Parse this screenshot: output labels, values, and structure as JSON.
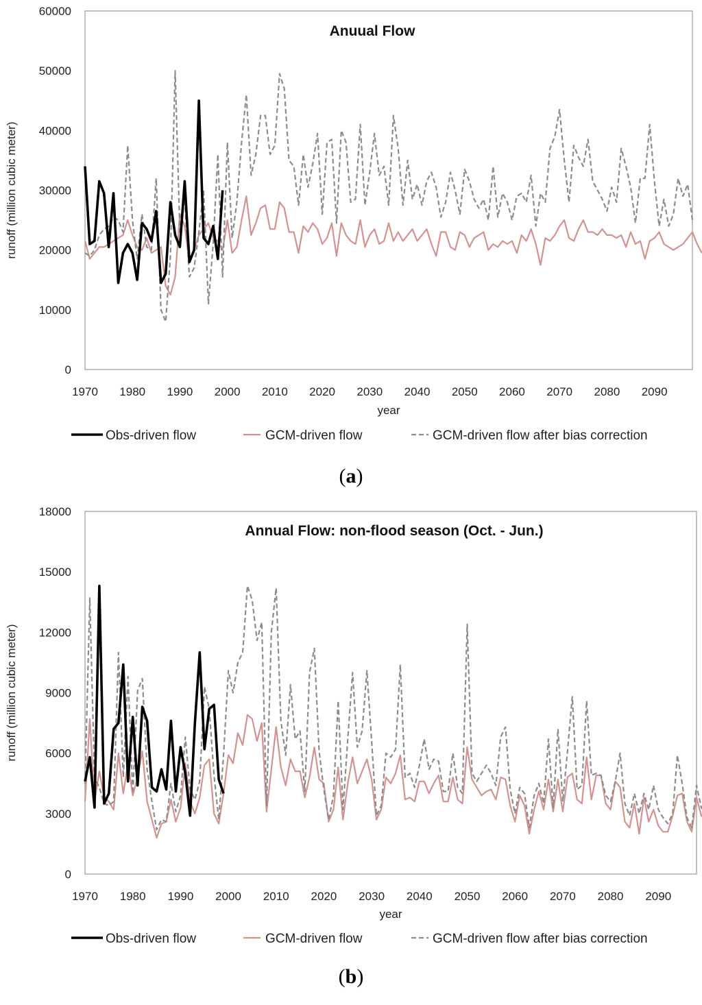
{
  "colors": {
    "obs": "#000000",
    "gcm": "#d4928f",
    "bias": "#8c8c8c",
    "frame": "#9a9a9a"
  },
  "legend": {
    "obs": "Obs-driven flow",
    "gcm": "GCM-driven flow",
    "bias": "GCM-driven flow after bias correction"
  },
  "captions": {
    "a": {
      "open": "(",
      "letter": "a",
      "close": ")"
    },
    "b": {
      "open": "(",
      "letter": "b",
      "close": ")"
    }
  },
  "chart_data": [
    {
      "id": "a",
      "type": "line",
      "title": "Anuual Flow",
      "xlabel": "year",
      "ylabel": "runoff (million cubic meter)",
      "xlim": [
        1970,
        2098
      ],
      "ylim": [
        0,
        60000
      ],
      "yticks": [
        0,
        10000,
        20000,
        30000,
        40000,
        50000,
        60000
      ],
      "xticks": [
        1970,
        1980,
        1990,
        2000,
        2010,
        2020,
        2030,
        2040,
        2050,
        2060,
        2070,
        2080,
        2090
      ],
      "series": [
        {
          "key": "obs",
          "name": "Obs-driven flow",
          "x_start": 1970,
          "values": [
            34000,
            21000,
            21500,
            31500,
            29500,
            20500,
            29500,
            14500,
            19500,
            21000,
            19500,
            15000,
            24500,
            23500,
            21500,
            26500,
            14500,
            16000,
            28000,
            22500,
            20500,
            31500,
            18000,
            20000,
            45000,
            22000,
            21000,
            24000,
            18500,
            30000
          ]
        },
        {
          "key": "gcm",
          "name": "GCM-driven flow",
          "x_start": 1970,
          "values": [
            21500,
            18500,
            19500,
            20500,
            20500,
            21000,
            21500,
            22000,
            22500,
            25000,
            22500,
            20500,
            20000,
            22000,
            19500,
            20000,
            20500,
            14000,
            12500,
            15500,
            26000,
            24000,
            18000,
            20000,
            22500,
            23500,
            24500,
            22000,
            21500,
            20000,
            25000,
            19500,
            20500,
            25000,
            29000,
            22500,
            24500,
            27000,
            27500,
            23500,
            23500,
            28000,
            27000,
            23000,
            23000,
            19500,
            24000,
            23000,
            24500,
            23500,
            21000,
            22000,
            24500,
            19000,
            24500,
            22500,
            21500,
            21000,
            25000,
            20500,
            22500,
            23500,
            21000,
            21500,
            24500,
            21500,
            23000,
            21500,
            22500,
            23500,
            21500,
            22500,
            23500,
            21000,
            19000,
            23000,
            23000,
            20500,
            20000,
            23000,
            22500,
            20500,
            22000,
            22500,
            23000,
            20000,
            21000,
            20500,
            21500,
            21000,
            21500,
            19500,
            22500,
            21500,
            23500,
            21000,
            17500,
            22000,
            21500,
            22500,
            24000,
            25000,
            22000,
            21500,
            23500,
            25000,
            23000,
            23000,
            22500,
            23500,
            22500,
            22500,
            22000,
            22500,
            20500,
            23000,
            21000,
            21500,
            18500,
            21500,
            22000,
            23000,
            21000,
            20500,
            20000,
            20500,
            21000,
            22000,
            23000,
            21000,
            19500
          ]
        },
        {
          "key": "bias",
          "name": "GCM-driven flow after bias correction",
          "x_start": 1970,
          "values": [
            19500,
            19000,
            20000,
            22500,
            23500,
            24000,
            25500,
            25000,
            23000,
            37500,
            25000,
            18500,
            26000,
            20500,
            20000,
            32000,
            10000,
            8000,
            19000,
            50000,
            23000,
            28500,
            15500,
            17000,
            23000,
            30000,
            11000,
            21000,
            36000,
            15500,
            38000,
            22000,
            28000,
            38000,
            46000,
            32500,
            36000,
            42500,
            42500,
            36000,
            37500,
            49500,
            47000,
            35000,
            34000,
            27500,
            36000,
            30500,
            34500,
            39500,
            26000,
            38000,
            38500,
            24500,
            40000,
            38000,
            28000,
            28500,
            41000,
            27500,
            33000,
            39500,
            32500,
            34000,
            27500,
            42500,
            37000,
            27500,
            35000,
            28500,
            31000,
            27500,
            31500,
            33000,
            30500,
            25500,
            28000,
            33000,
            30000,
            26000,
            33500,
            31500,
            28500,
            27000,
            28500,
            25000,
            34000,
            25500,
            29500,
            28000,
            25000,
            29000,
            29500,
            28000,
            32500,
            24000,
            29500,
            28000,
            37000,
            39000,
            43500,
            35000,
            28000,
            37500,
            35500,
            34000,
            38500,
            31500,
            30000,
            28500,
            26500,
            30500,
            28000,
            37000,
            34000,
            30500,
            24500,
            32000,
            32000,
            41000,
            31500,
            24000,
            28500,
            24000,
            26000,
            32000,
            29000,
            31000,
            25000
          ]
        }
      ]
    },
    {
      "id": "b",
      "type": "line",
      "title": "Annual Flow: non-flood season (Oct. - Jun.)",
      "xlabel": "year",
      "ylabel": "runoff (million cubic meter)",
      "xlim": [
        1970,
        2098
      ],
      "ylim": [
        0,
        18000
      ],
      "yticks": [
        0,
        3000,
        6000,
        9000,
        12000,
        15000,
        18000
      ],
      "xticks": [
        1970,
        1980,
        1990,
        2000,
        2010,
        2020,
        2030,
        2040,
        2050,
        2060,
        2070,
        2080,
        2090
      ],
      "series": [
        {
          "key": "obs",
          "name": "Obs-driven flow",
          "x_start": 1970,
          "values": [
            4600,
            5800,
            3300,
            14300,
            3500,
            4000,
            7200,
            7500,
            10400,
            4600,
            7800,
            4400,
            8300,
            7600,
            4300,
            4100,
            5200,
            4200,
            7600,
            4100,
            6300,
            5000,
            2900,
            7500,
            11000,
            6200,
            8200,
            8400,
            4700,
            4000
          ]
        },
        {
          "key": "gcm",
          "name": "GCM-driven flow",
          "x_start": 1970,
          "values": [
            3600,
            7700,
            3600,
            5100,
            3800,
            3600,
            3200,
            6000,
            4000,
            5500,
            3900,
            4800,
            6100,
            3600,
            2700,
            1800,
            2500,
            2600,
            3700,
            2600,
            3300,
            5500,
            3600,
            3000,
            3800,
            5400,
            5700,
            3000,
            2500,
            4000,
            5900,
            5500,
            7000,
            6400,
            7900,
            7700,
            6600,
            7500,
            3100,
            5200,
            7300,
            5300,
            4400,
            5700,
            5100,
            5100,
            3800,
            4800,
            6300,
            4700,
            4500,
            2600,
            3200,
            5300,
            2700,
            4500,
            5800,
            4500,
            5100,
            5700,
            4700,
            2700,
            3200,
            4800,
            4500,
            5000,
            5900,
            3700,
            3800,
            3600,
            4600,
            4600,
            4000,
            4500,
            4900,
            3600,
            3600,
            4800,
            3700,
            3500,
            6300,
            4700,
            4300,
            3900,
            4100,
            4200,
            3700,
            4800,
            4700,
            3400,
            2600,
            3900,
            3400,
            2000,
            3200,
            4100,
            3200,
            4700,
            3100,
            4700,
            3100,
            4800,
            5000,
            3700,
            3500,
            5800,
            3700,
            4900,
            4900,
            3500,
            3200,
            4600,
            4300,
            2600,
            2300,
            3500,
            2000,
            3800,
            2600,
            3200,
            2400,
            2100,
            2100,
            2900,
            3900,
            4000,
            2600,
            2100,
            3800,
            2900,
            2700
          ]
        },
        {
          "key": "bias",
          "name": "GCM-driven flow after bias correction",
          "x_start": 1970,
          "values": [
            4500,
            13700,
            4800,
            4300,
            3500,
            3400,
            3600,
            11000,
            4800,
            9800,
            4000,
            9100,
            9700,
            5200,
            3600,
            2200,
            2700,
            2600,
            4500,
            3100,
            3900,
            6800,
            4200,
            3700,
            4600,
            9300,
            8200,
            4900,
            2700,
            5900,
            10100,
            9000,
            10500,
            11000,
            14300,
            13600,
            11600,
            12500,
            3400,
            12000,
            14200,
            7600,
            5900,
            9400,
            6700,
            7100,
            4100,
            10000,
            11200,
            6100,
            4200,
            2700,
            3900,
            8600,
            3200,
            6700,
            10000,
            6300,
            7100,
            10100,
            6600,
            2900,
            3400,
            6000,
            5800,
            6200,
            10400,
            4800,
            5000,
            4300,
            5400,
            6700,
            5200,
            5700,
            5600,
            4100,
            4100,
            6000,
            4300,
            4000,
            12400,
            5000,
            4600,
            5000,
            5400,
            5000,
            4400,
            6800,
            7300,
            4200,
            3000,
            4300,
            4000,
            2300,
            3900,
            4500,
            3500,
            6700,
            3300,
            7200,
            3600,
            6100,
            8800,
            4200,
            4400,
            8600,
            4900,
            5000,
            4900,
            3900,
            3600,
            4600,
            6000,
            3500,
            2900,
            4000,
            3000,
            4000,
            3200,
            4400,
            3200,
            2800,
            2500,
            3000,
            5900,
            4500,
            2800,
            2300,
            4400,
            3300,
            3000
          ]
        }
      ]
    }
  ]
}
